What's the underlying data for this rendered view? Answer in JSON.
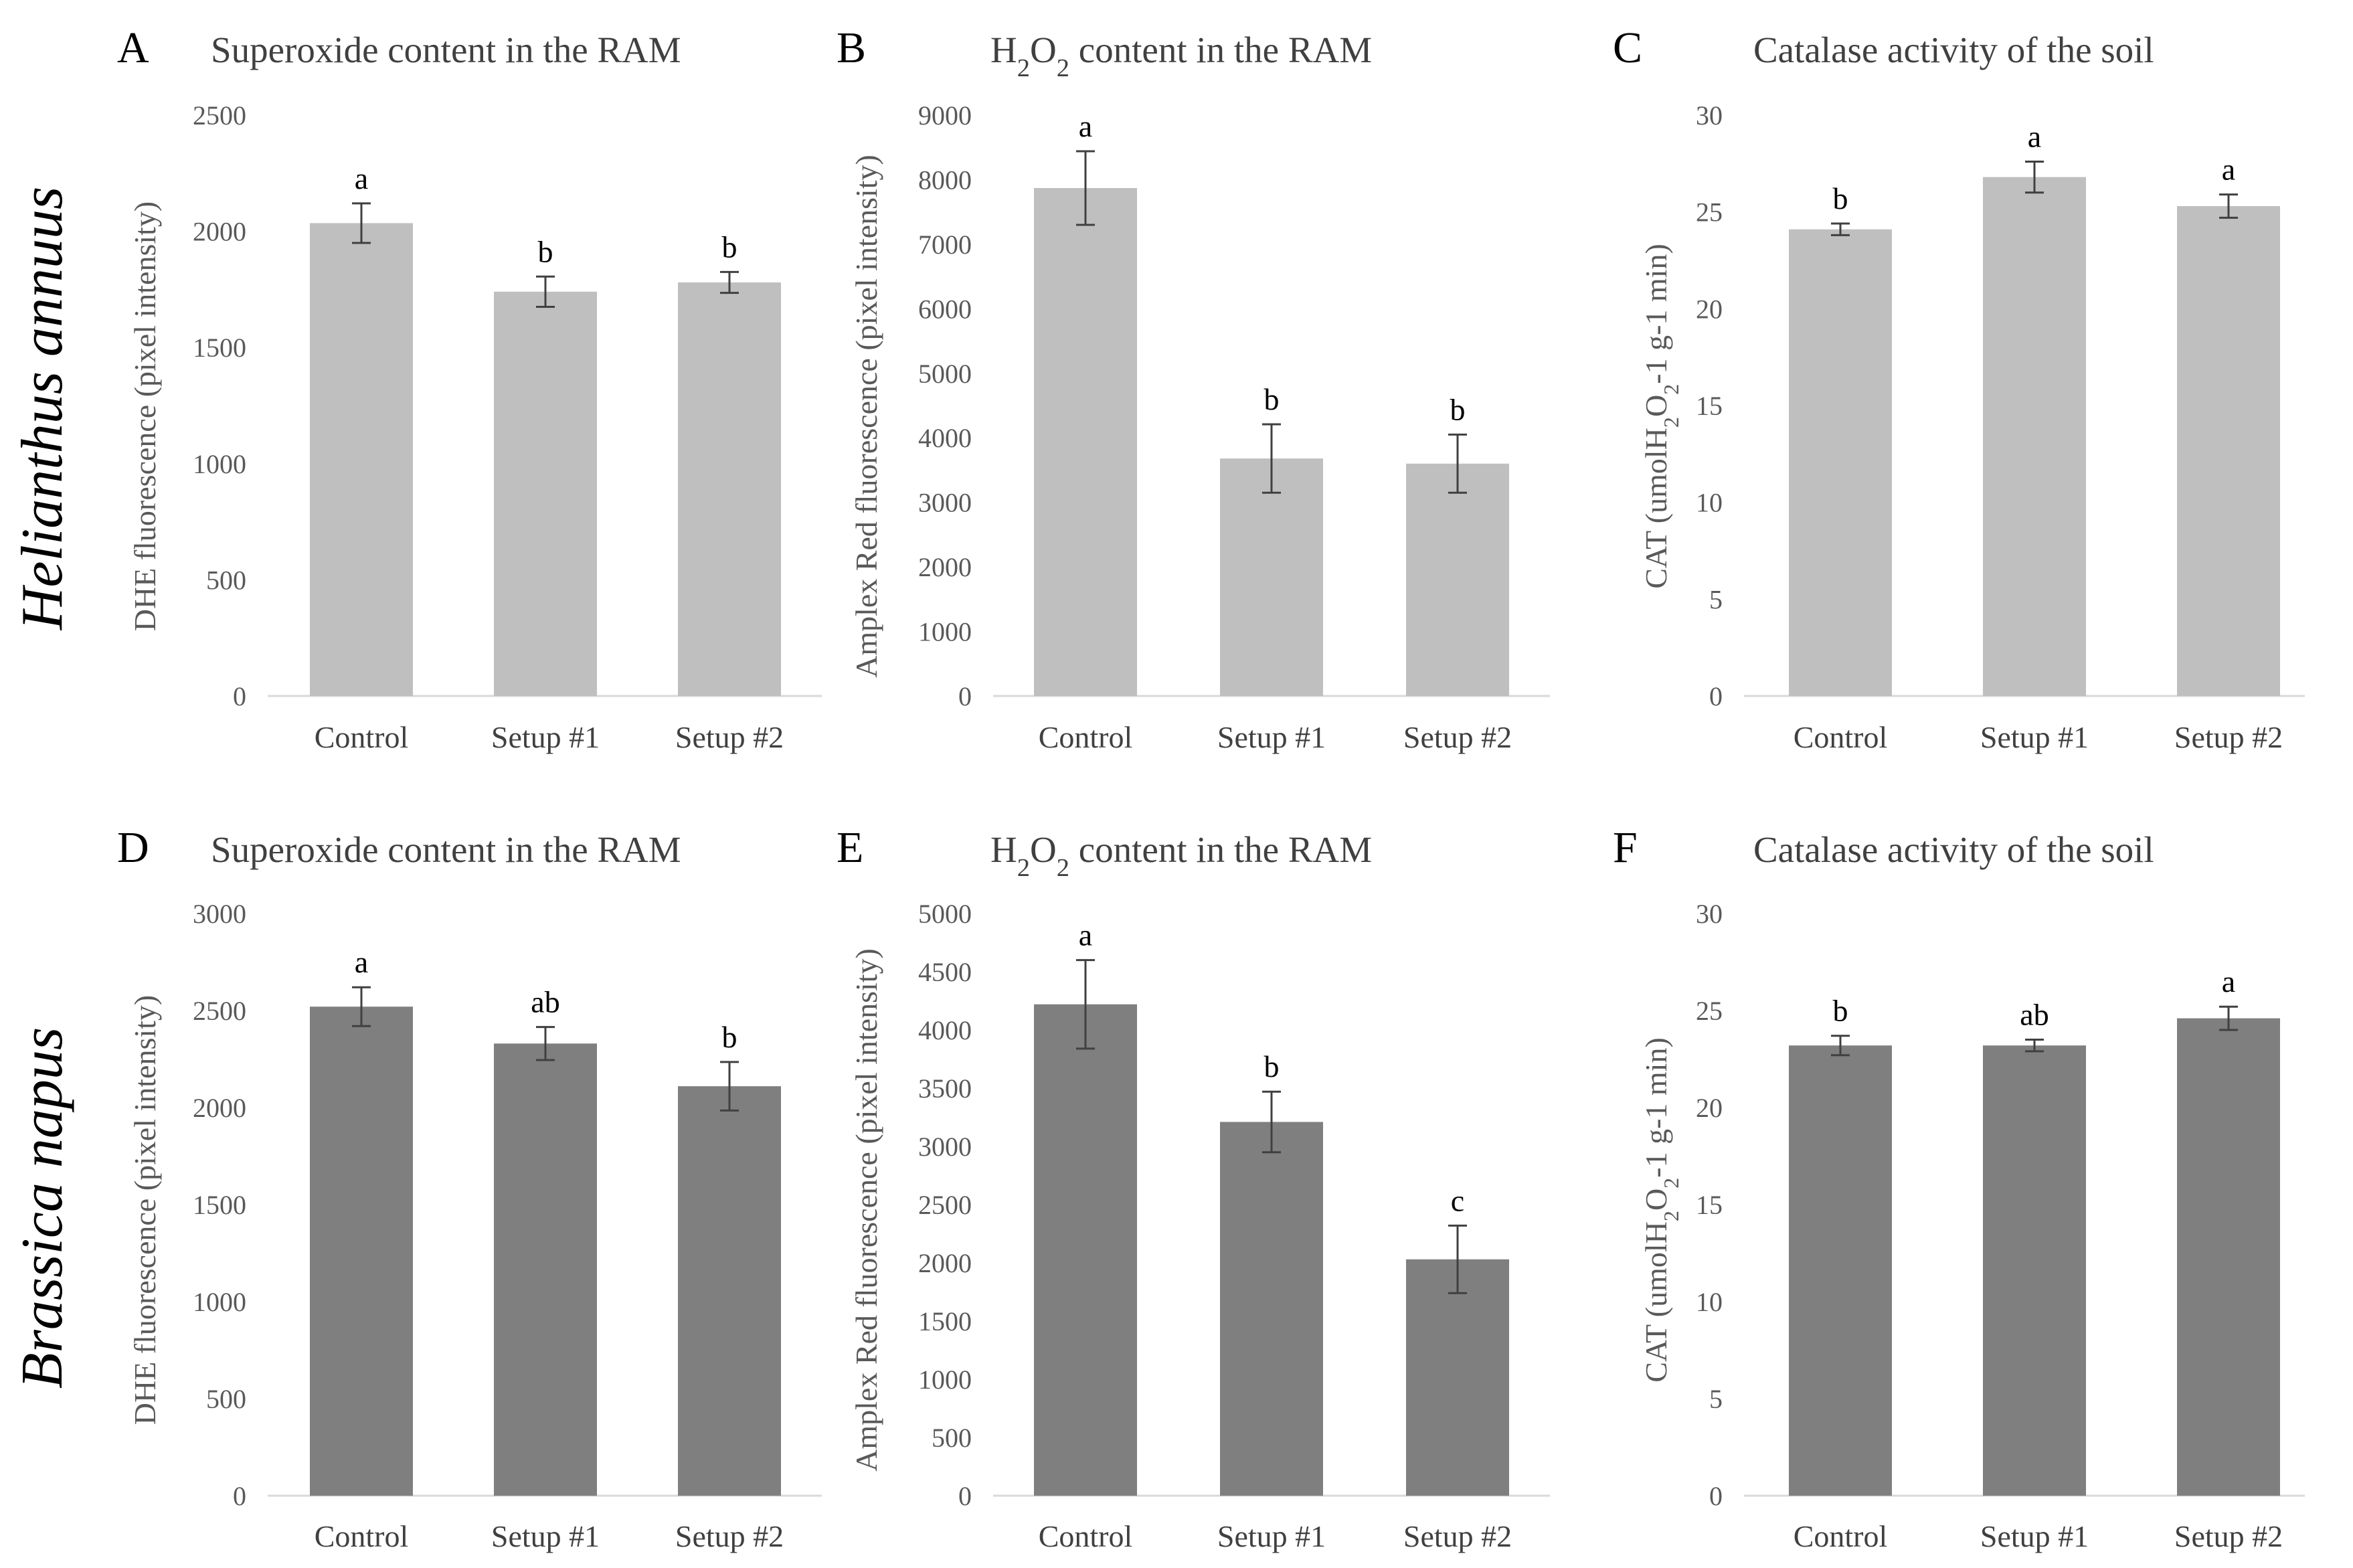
{
  "rows": [
    {
      "label": "Helianthus annuus",
      "bar_color": "#bfbfbf"
    },
    {
      "label": "Brassica napus",
      "bar_color": "#7f7f7f"
    }
  ],
  "chart_data": [
    {
      "panel": "A",
      "type": "bar",
      "row": 0,
      "title": {
        "pre": "Superoxide content in the RAM",
        "sub1": "",
        "mid": "",
        "sub2": "",
        "post": ""
      },
      "ylabel": {
        "pre": "DHE fluorescence (pixel intensity)",
        "sub1": "",
        "mid": "",
        "sub2": "",
        "post": ""
      },
      "categories": [
        "Control",
        "Setup #1",
        "Setup #2"
      ],
      "values": [
        2035,
        1740,
        1780
      ],
      "errors": [
        85,
        65,
        45
      ],
      "significance": [
        "a",
        "b",
        "b"
      ],
      "ylim": [
        0,
        2500
      ],
      "yticks": [
        0,
        500,
        1000,
        1500,
        2000,
        2500
      ]
    },
    {
      "panel": "B",
      "type": "bar",
      "row": 0,
      "title": {
        "pre": "H",
        "sub1": "2",
        "mid": "O",
        "sub2": "2",
        "post": " content in the RAM"
      },
      "ylabel": {
        "pre": "Amplex Red fluorescence (pixel intensity)",
        "sub1": "",
        "mid": "",
        "sub2": "",
        "post": ""
      },
      "categories": [
        "Control",
        "Setup #1",
        "Setup #2"
      ],
      "values": [
        7870,
        3680,
        3600
      ],
      "errors": [
        570,
        530,
        450
      ],
      "significance": [
        "a",
        "b",
        "b"
      ],
      "ylim": [
        0,
        9000
      ],
      "yticks": [
        0,
        1000,
        2000,
        3000,
        4000,
        5000,
        6000,
        7000,
        8000,
        9000
      ]
    },
    {
      "panel": "C",
      "type": "bar",
      "row": 0,
      "title": {
        "pre": "Catalase activity of the soil",
        "sub1": "",
        "mid": "",
        "sub2": "",
        "post": ""
      },
      "ylabel": {
        "pre": "CAT (umolH",
        "sub1": "2",
        "mid": "O",
        "sub2": "2",
        "post": "-1 g-1 min)"
      },
      "categories": [
        "Control",
        "Setup #1",
        "Setup #2"
      ],
      "values": [
        24.1,
        26.8,
        25.3
      ],
      "errors": [
        0.3,
        0.8,
        0.6
      ],
      "significance": [
        "b",
        "a",
        "a"
      ],
      "ylim": [
        0,
        30
      ],
      "yticks": [
        0,
        5,
        10,
        15,
        20,
        25,
        30
      ]
    },
    {
      "panel": "D",
      "type": "bar",
      "row": 1,
      "title": {
        "pre": "Superoxide content in the RAM",
        "sub1": "",
        "mid": "",
        "sub2": "",
        "post": ""
      },
      "ylabel": {
        "pre": "DHE fluorescence (pixel intensity)",
        "sub1": "",
        "mid": "",
        "sub2": "",
        "post": ""
      },
      "categories": [
        "Control",
        "Setup #1",
        "Setup #2"
      ],
      "values": [
        2520,
        2330,
        2110
      ],
      "errors": [
        100,
        85,
        125
      ],
      "significance": [
        "a",
        "ab",
        "b"
      ],
      "ylim": [
        0,
        3000
      ],
      "yticks": [
        0,
        500,
        1000,
        1500,
        2000,
        2500,
        3000
      ]
    },
    {
      "panel": "E",
      "type": "bar",
      "row": 1,
      "title": {
        "pre": "H",
        "sub1": "2",
        "mid": "O",
        "sub2": "2",
        "post": " content in the RAM"
      },
      "ylabel": {
        "pre": "Amplex Red fluorescence (pixel intensity)",
        "sub1": "",
        "mid": "",
        "sub2": "",
        "post": ""
      },
      "categories": [
        "Control",
        "Setup #1",
        "Setup #2"
      ],
      "values": [
        4220,
        3210,
        2030
      ],
      "errors": [
        380,
        260,
        290
      ],
      "significance": [
        "a",
        "b",
        "c"
      ],
      "ylim": [
        0,
        5000
      ],
      "yticks": [
        0,
        500,
        1000,
        1500,
        2000,
        2500,
        3000,
        3500,
        4000,
        4500,
        5000
      ]
    },
    {
      "panel": "F",
      "type": "bar",
      "row": 1,
      "title": {
        "pre": "Catalase activity of the soil",
        "sub1": "",
        "mid": "",
        "sub2": "",
        "post": ""
      },
      "ylabel": {
        "pre": "CAT (umolH",
        "sub1": "2",
        "mid": "O",
        "sub2": "2",
        "post": "-1 g-1 min)"
      },
      "categories": [
        "Control",
        "Setup #1",
        "Setup #2"
      ],
      "values": [
        23.2,
        23.2,
        24.6
      ],
      "errors": [
        0.5,
        0.3,
        0.6
      ],
      "significance": [
        "b",
        "ab",
        "a"
      ],
      "ylim": [
        0,
        30
      ],
      "yticks": [
        0,
        5,
        10,
        15,
        20,
        25,
        30
      ]
    }
  ]
}
